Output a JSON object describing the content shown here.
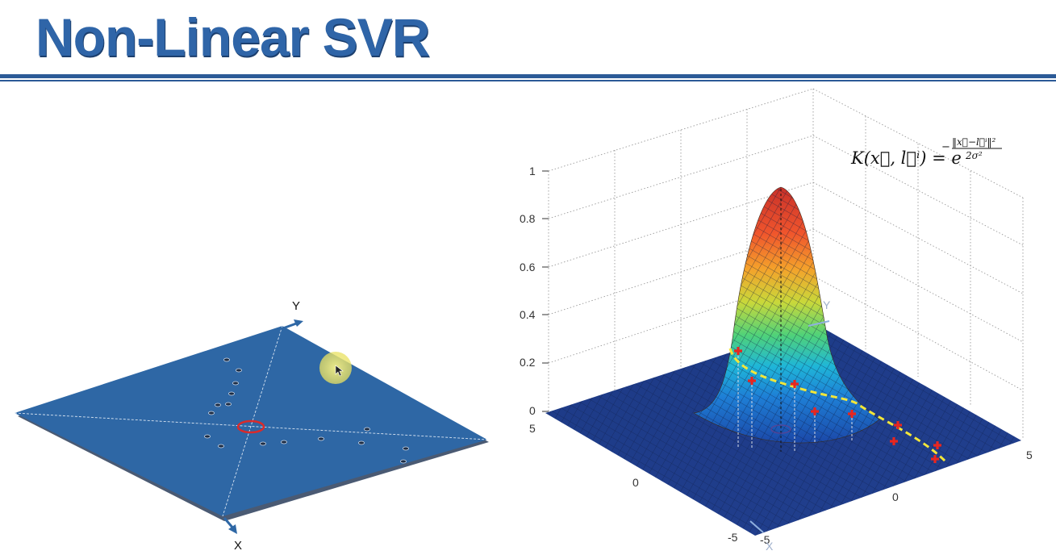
{
  "title": "Non-Linear SVR",
  "left_plane": {
    "x_label": "X",
    "y_label": "Y",
    "plane_color": "#2e67a5",
    "highlight_color": "#d92b2b"
  },
  "right_plot": {
    "y_label": "Y",
    "x_label": "X",
    "z_ticks": [
      "1",
      "0.8",
      "0.6",
      "0.4",
      "0.2",
      "0"
    ],
    "x_ticks": [
      "5",
      "0",
      "-5"
    ],
    "y_ticks": [
      "-5",
      "0",
      "5"
    ],
    "formula": {
      "lhs": "K(x⃗, l⃗ⁱ) = e",
      "exp_num": "‖x⃗−l⃗ⁱ‖²",
      "exp_den": "2σ²",
      "minus": "−"
    },
    "colors": {
      "floor": "#1f3d8c",
      "curve": "#f2e63a",
      "points": "#e8261f"
    }
  }
}
